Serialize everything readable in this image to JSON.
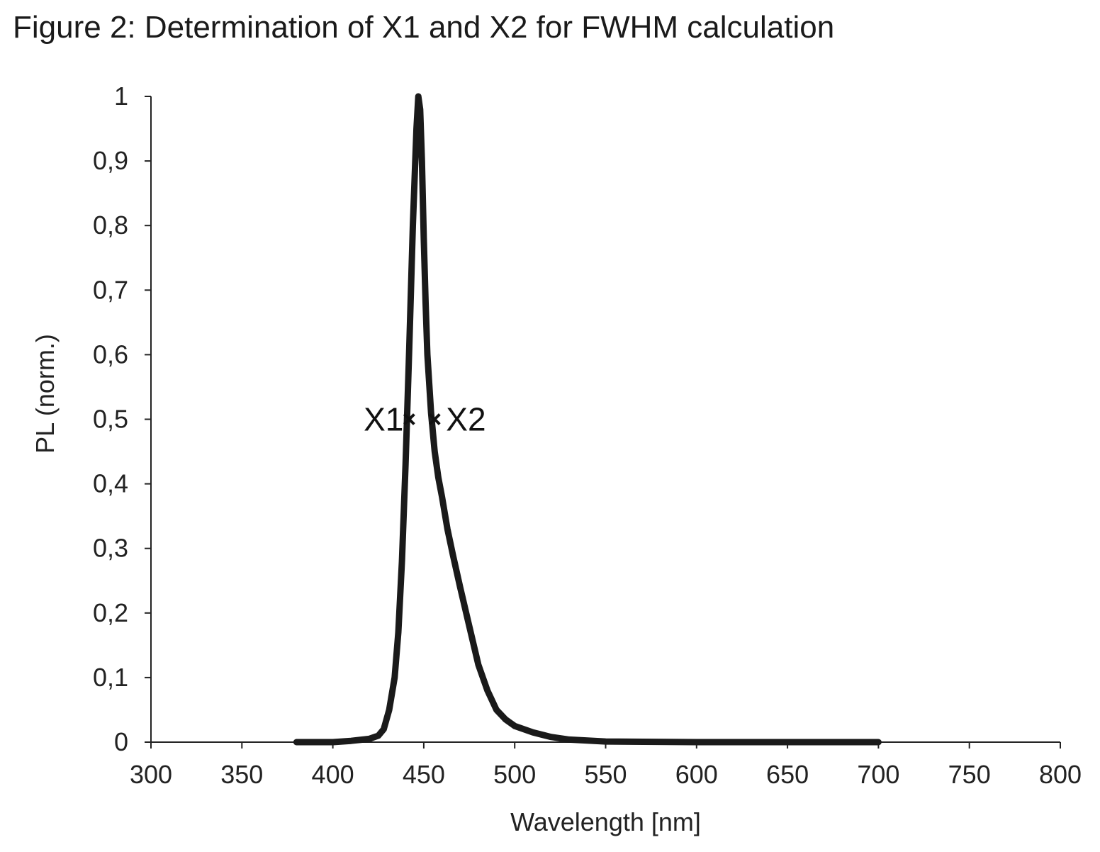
{
  "figure": {
    "title": "Figure 2: Determination of X1 and X2 for FWHM calculation"
  },
  "chart_data": {
    "type": "line",
    "xlabel": "Wavelength [nm]",
    "ylabel": "PL (norm.)",
    "xlim": [
      300,
      800
    ],
    "ylim": [
      0,
      1
    ],
    "x_ticks": [
      300,
      350,
      400,
      450,
      500,
      550,
      600,
      650,
      700,
      750,
      800
    ],
    "y_ticks": [
      0,
      0.1,
      0.2,
      0.3,
      0.4,
      0.5,
      0.6,
      0.7,
      0.8,
      0.9,
      1
    ],
    "y_tick_labels": [
      "0",
      "0,1",
      "0,2",
      "0,3",
      "0,4",
      "0,5",
      "0,6",
      "0,7",
      "0,8",
      "0,9",
      "1"
    ],
    "grid": false,
    "legend": "none",
    "series": [
      {
        "color": "#1a1a1a",
        "x": [
          380,
          400,
          410,
          420,
          425,
          428,
          431,
          434,
          436,
          438,
          440,
          442,
          444,
          446,
          447,
          448,
          449,
          450,
          451,
          452,
          454,
          456,
          458,
          460,
          463,
          466,
          470,
          475,
          480,
          485,
          490,
          495,
          500,
          510,
          520,
          530,
          550,
          600,
          650,
          700
        ],
        "y": [
          0.0,
          0.0,
          0.002,
          0.005,
          0.01,
          0.02,
          0.05,
          0.1,
          0.17,
          0.28,
          0.43,
          0.61,
          0.8,
          0.95,
          1.0,
          0.98,
          0.9,
          0.78,
          0.68,
          0.6,
          0.51,
          0.45,
          0.41,
          0.38,
          0.33,
          0.29,
          0.24,
          0.18,
          0.12,
          0.08,
          0.05,
          0.035,
          0.025,
          0.015,
          0.008,
          0.004,
          0.001,
          0.0,
          0.0,
          0.0
        ]
      }
    ],
    "markers": [
      {
        "label": "X1",
        "x": 442,
        "y": 0.5
      },
      {
        "label": "X2",
        "x": 456,
        "y": 0.5
      }
    ]
  }
}
